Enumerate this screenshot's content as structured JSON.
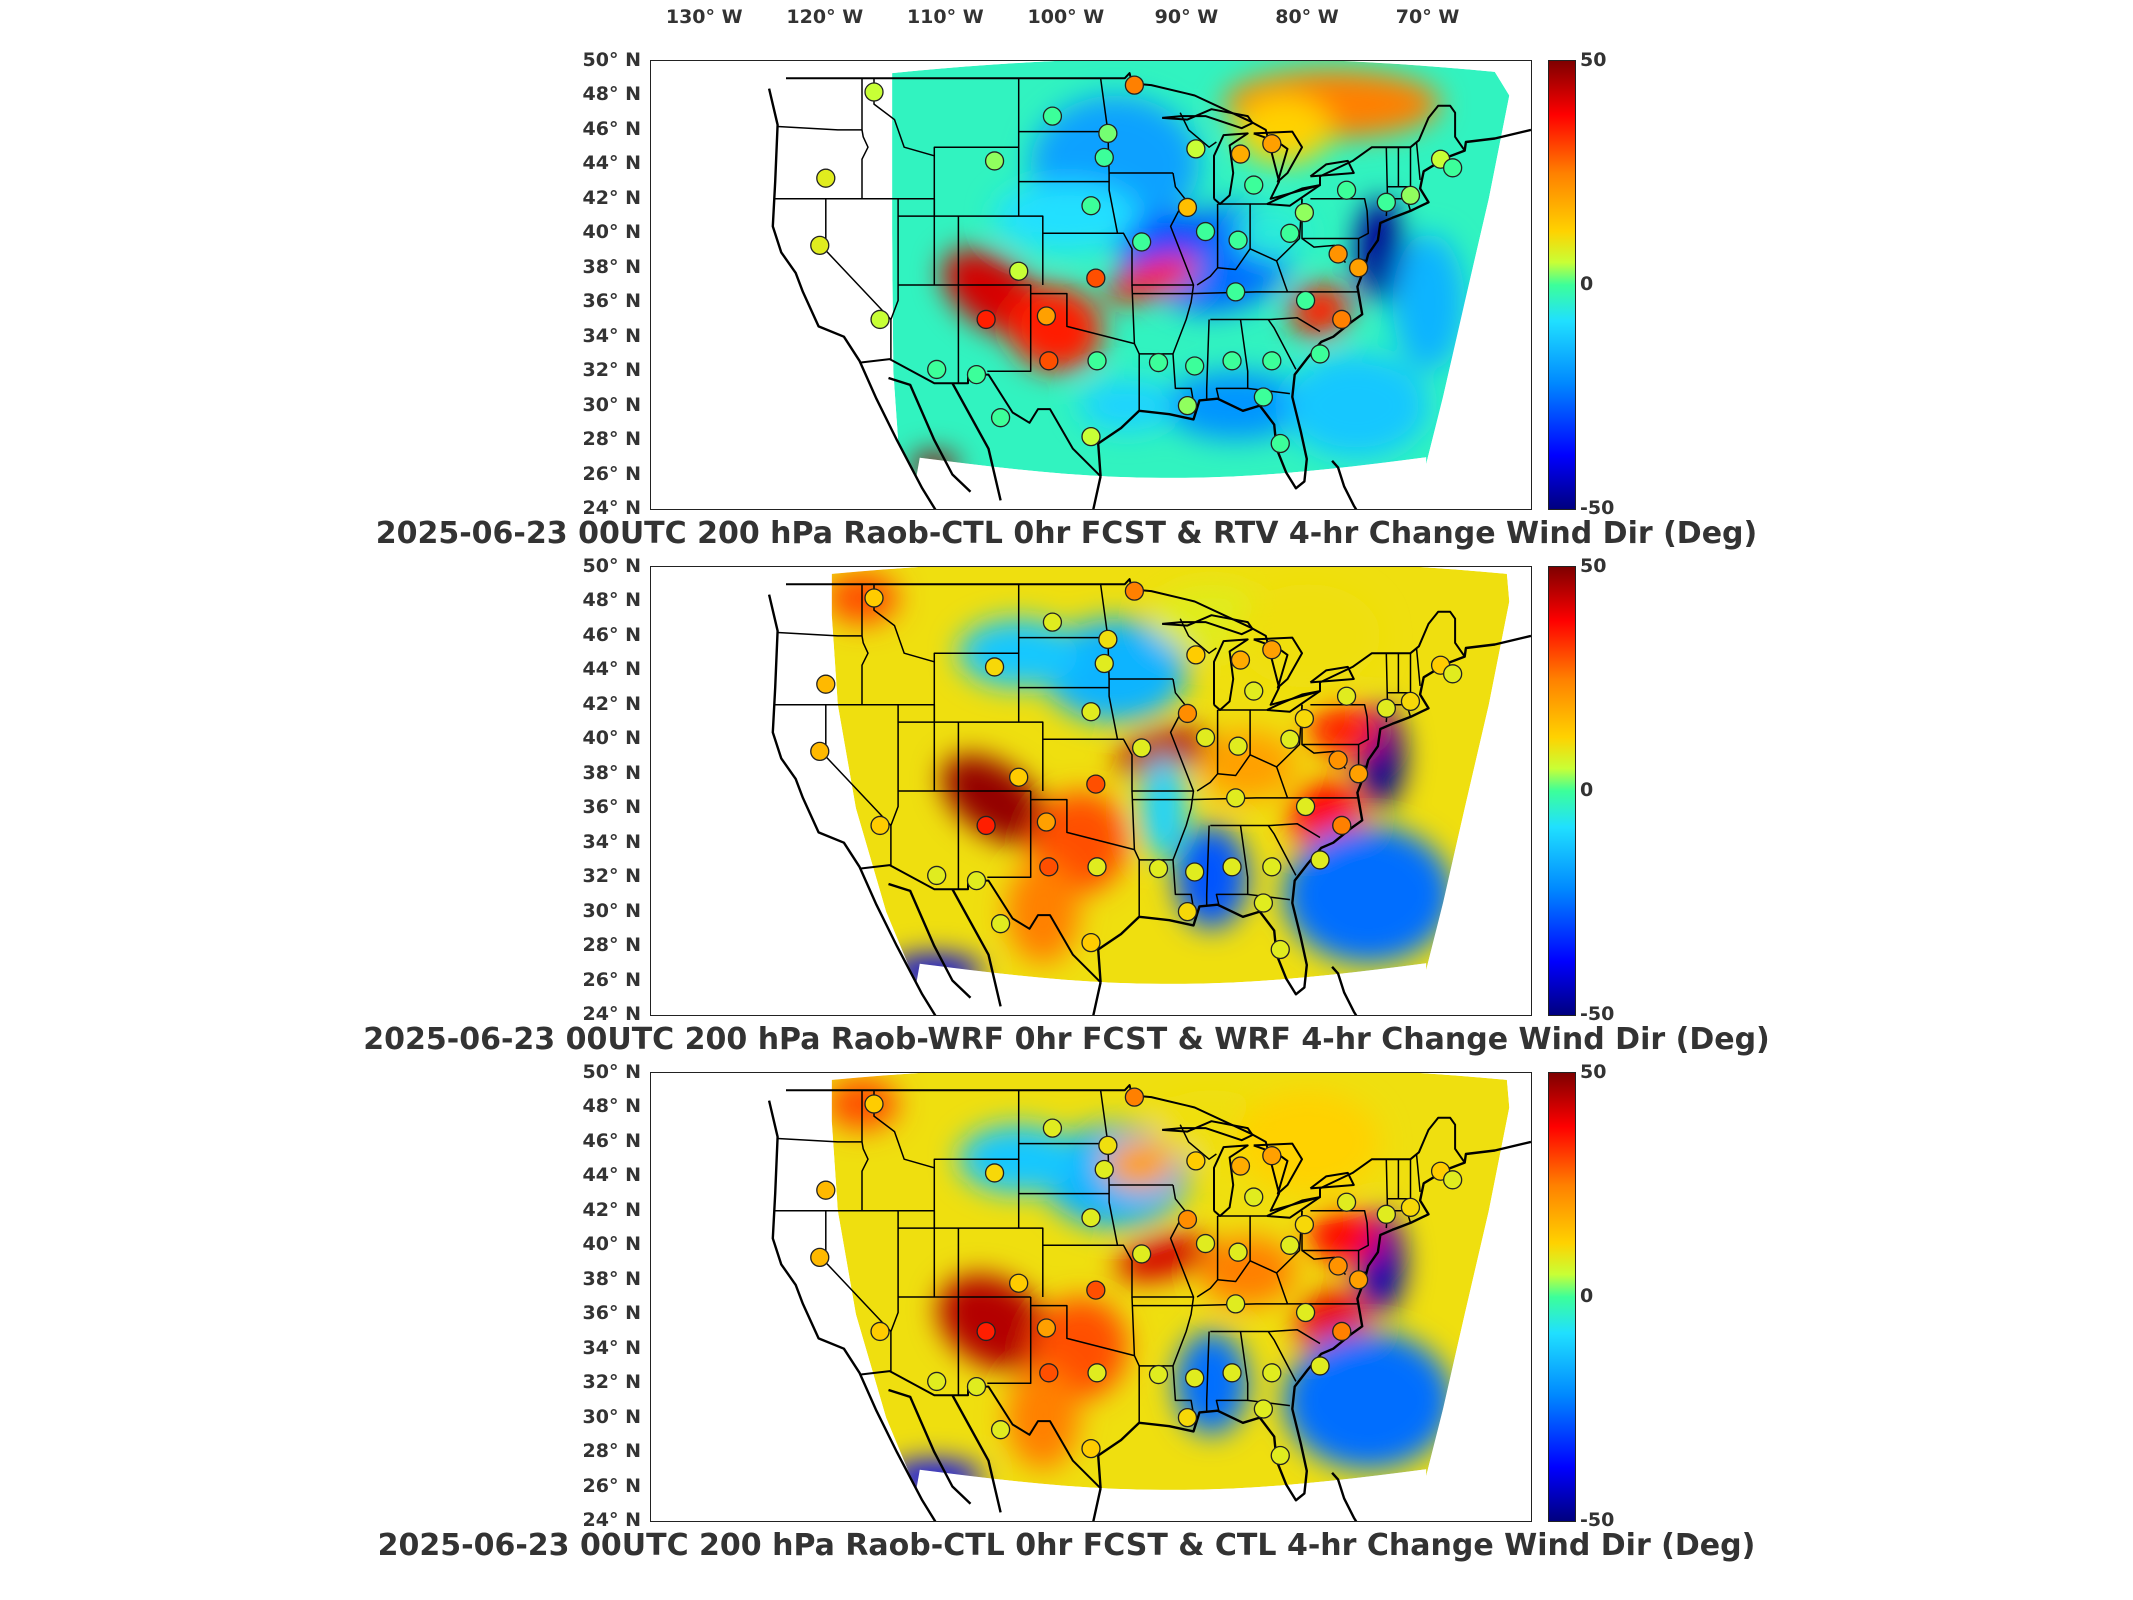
{
  "lon_labels": [
    {
      "text": "130° W",
      "lon": -130
    },
    {
      "text": "120° W",
      "lon": -120
    },
    {
      "text": "110° W",
      "lon": -110
    },
    {
      "text": "100° W",
      "lon": -100
    },
    {
      "text": "90° W",
      "lon": -90
    },
    {
      "text": "80° W",
      "lon": -80
    },
    {
      "text": "70° W",
      "lon": -70
    }
  ],
  "lat_labels": [
    {
      "text": "50° N",
      "lat": 50
    },
    {
      "text": "48° N",
      "lat": 48
    },
    {
      "text": "46° N",
      "lat": 46
    },
    {
      "text": "44° N",
      "lat": 44
    },
    {
      "text": "42° N",
      "lat": 42
    },
    {
      "text": "40° N",
      "lat": 40
    },
    {
      "text": "38° N",
      "lat": 38
    },
    {
      "text": "36° N",
      "lat": 36
    },
    {
      "text": "34° N",
      "lat": 34
    },
    {
      "text": "32° N",
      "lat": 32
    },
    {
      "text": "30° N",
      "lat": 30
    },
    {
      "text": "28° N",
      "lat": 28
    },
    {
      "text": "26° N",
      "lat": 26
    },
    {
      "text": "24° N",
      "lat": 24
    }
  ],
  "colorbar": {
    "max_label": "50",
    "mid_label": "0",
    "min_label": "-50",
    "range": [
      -50,
      50
    ]
  },
  "panels": [
    {
      "title": "2025-06-23 00UTC 200 hPa Raob-CTL 0hr FCST & RTV 4-hr Change Wind Dir (Deg)"
    },
    {
      "title": "2025-06-23 00UTC 200 hPa Raob-WRF 0hr FCST & WRF 4-hr Change Wind Dir (Deg)"
    },
    {
      "title": "2025-06-23 00UTC 200 hPa Raob-CTL 0hr FCST & CTL 4-hr Change Wind Dir (Deg)"
    }
  ],
  "stations": [
    {
      "lon": -116.0,
      "lat": 48.2,
      "v": 5
    },
    {
      "lon": -101.2,
      "lat": 46.8,
      "v": 0
    },
    {
      "lon": -96.6,
      "lat": 45.8,
      "v": 2
    },
    {
      "lon": -94.4,
      "lat": 48.6,
      "v": 25
    },
    {
      "lon": -106.0,
      "lat": 44.2,
      "v": 3
    },
    {
      "lon": -96.9,
      "lat": 44.4,
      "v": 0
    },
    {
      "lon": -89.3,
      "lat": 44.9,
      "v": 5
    },
    {
      "lon": -85.6,
      "lat": 44.6,
      "v": 18
    },
    {
      "lon": -83.0,
      "lat": 45.2,
      "v": 20
    },
    {
      "lon": -120.0,
      "lat": 43.2,
      "v": 8
    },
    {
      "lon": -84.5,
      "lat": 42.8,
      "v": 0
    },
    {
      "lon": -90.0,
      "lat": 41.5,
      "v": 15
    },
    {
      "lon": -98.0,
      "lat": 41.6,
      "v": 0
    },
    {
      "lon": -80.3,
      "lat": 41.2,
      "v": 3
    },
    {
      "lon": -76.8,
      "lat": 42.5,
      "v": 0
    },
    {
      "lon": -73.5,
      "lat": 41.8,
      "v": 0
    },
    {
      "lon": -71.5,
      "lat": 42.2,
      "v": 3
    },
    {
      "lon": -69.0,
      "lat": 44.3,
      "v": 5
    },
    {
      "lon": -68.0,
      "lat": 43.8,
      "v": 0
    },
    {
      "lon": -120.5,
      "lat": 39.3,
      "v": 8
    },
    {
      "lon": -93.8,
      "lat": 39.5,
      "v": 0
    },
    {
      "lon": -88.5,
      "lat": 40.1,
      "v": 0
    },
    {
      "lon": -85.8,
      "lat": 39.6,
      "v": 0
    },
    {
      "lon": -81.5,
      "lat": 40.0,
      "v": 0
    },
    {
      "lon": -77.5,
      "lat": 38.8,
      "v": 22
    },
    {
      "lon": -104.0,
      "lat": 37.8,
      "v": 5
    },
    {
      "lon": -97.6,
      "lat": 37.4,
      "v": 30
    },
    {
      "lon": -86.0,
      "lat": 36.6,
      "v": 0
    },
    {
      "lon": -80.2,
      "lat": 36.1,
      "v": 0
    },
    {
      "lon": -115.5,
      "lat": 35.0,
      "v": 5
    },
    {
      "lon": -106.7,
      "lat": 35.0,
      "v": 35
    },
    {
      "lon": -101.7,
      "lat": 35.2,
      "v": 20
    },
    {
      "lon": -101.5,
      "lat": 32.6,
      "v": 30
    },
    {
      "lon": -97.5,
      "lat": 32.6,
      "v": 0
    },
    {
      "lon": -110.8,
      "lat": 32.1,
      "v": 0
    },
    {
      "lon": -107.5,
      "lat": 31.8,
      "v": 0
    },
    {
      "lon": -92.4,
      "lat": 32.5,
      "v": 0
    },
    {
      "lon": -89.4,
      "lat": 32.3,
      "v": 0
    },
    {
      "lon": -86.3,
      "lat": 32.6,
      "v": 0
    },
    {
      "lon": -83.0,
      "lat": 32.6,
      "v": 0
    },
    {
      "lon": -79.0,
      "lat": 33.0,
      "v": 0
    },
    {
      "lon": -105.5,
      "lat": 29.3,
      "v": 0
    },
    {
      "lon": -98.0,
      "lat": 28.2,
      "v": 5
    },
    {
      "lon": -90.0,
      "lat": 30.0,
      "v": 3
    },
    {
      "lon": -83.7,
      "lat": 30.5,
      "v": 0
    },
    {
      "lon": -82.3,
      "lat": 27.8,
      "v": 0
    },
    {
      "lon": -77.2,
      "lat": 35.0,
      "v": 25
    },
    {
      "lon": -75.8,
      "lat": 38.0,
      "v": 20
    }
  ]
}
